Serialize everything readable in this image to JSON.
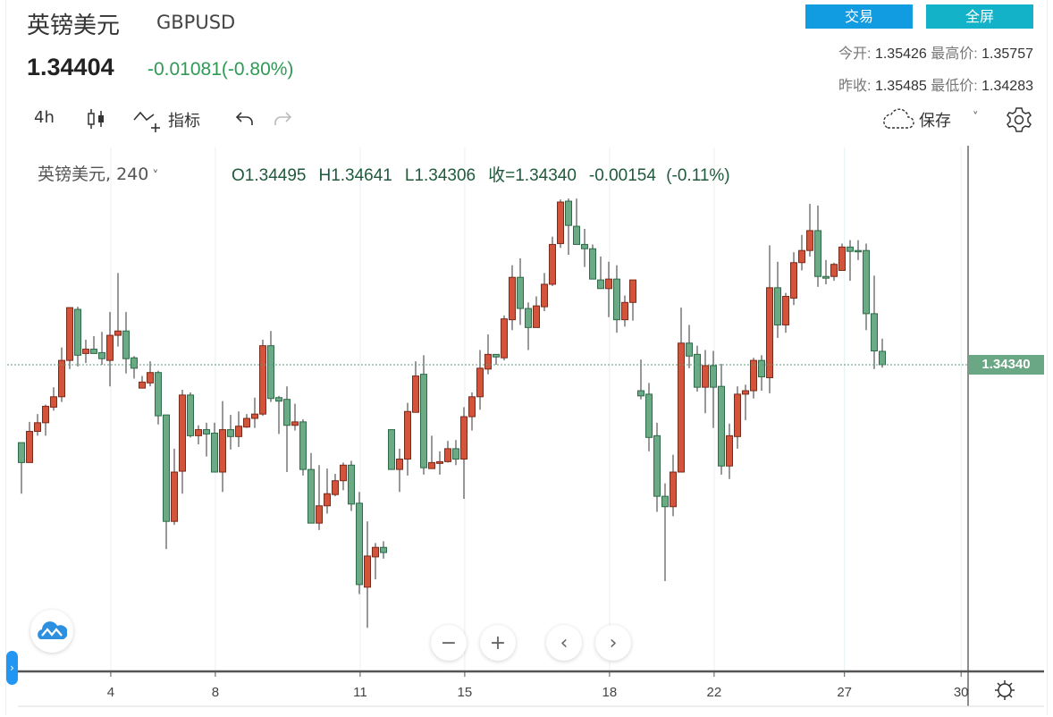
{
  "header": {
    "name": "英镑美元",
    "code": "GBPUSD",
    "price": "1.34404",
    "change": "-0.01081(-0.80%)",
    "trade_button": "交易",
    "fullscreen_button": "全屏",
    "stats": {
      "open_label": "今开:",
      "open": "1.35426",
      "high_label": "最高价:",
      "high": "1.35757",
      "prev_close_label": "昨收:",
      "prev_close": "1.35485",
      "low_label": "最低价:",
      "low": "1.34283"
    }
  },
  "toolbar": {
    "interval": "4h",
    "indicators": "指标",
    "save": "保存",
    "icons": [
      "candlestick-icon",
      "indicator-icon",
      "undo-icon",
      "redo-icon",
      "cloud-icon",
      "chevron-down-icon",
      "gear-icon"
    ]
  },
  "legend": {
    "symbol": "英镑美元, 240",
    "chevron": "˅",
    "open": "O1.34495",
    "high": "H1.34641",
    "low": "L1.34306",
    "close": "收=1.34340",
    "change": "-0.00154 (-0.11%)"
  },
  "controls": {
    "zoom_out": "−",
    "zoom_in": "+",
    "scroll_left": "‹",
    "scroll_right": "›",
    "side_tab": "›"
  },
  "colors": {
    "up": "#d4533b",
    "up_border": "#7c2a1b",
    "down": "#6aab85",
    "down_border": "#2e6a48",
    "last_price": "#6aa785",
    "trade": "#119be0",
    "fullscreen": "#14b2c8"
  },
  "chart_data": {
    "type": "candlestick",
    "title": "英镑美元, 240",
    "interval": "4h",
    "up_color_meaning": "red = rising, green = falling",
    "last_price": 1.3434,
    "last_price_label": "1.34340",
    "ylim": [
      1.30807,
      1.3685
    ],
    "x_ticks": [
      {
        "label": "4",
        "candle_index": 11.1
      },
      {
        "label": "8",
        "candle_index": 24.1
      },
      {
        "label": "11",
        "candle_index": 42.1
      },
      {
        "label": "15",
        "candle_index": 55.1
      },
      {
        "label": "18",
        "candle_index": 73.1
      },
      {
        "label": "22",
        "candle_index": 86.1
      },
      {
        "label": "27",
        "candle_index": 102.3
      },
      {
        "label": "30",
        "candle_index": 116.8
      }
    ],
    "ohlc": [
      [
        1.3344,
        1.3344,
        1.3285,
        1.3321
      ],
      [
        1.3321,
        1.3368,
        1.3321,
        1.3357
      ],
      [
        1.3357,
        1.3377,
        1.3352,
        1.3367
      ],
      [
        1.3367,
        1.3388,
        1.3352,
        1.3386
      ],
      [
        1.3385,
        1.3408,
        1.3381,
        1.3397
      ],
      [
        1.3397,
        1.3454,
        1.3391,
        1.3439
      ],
      [
        1.3439,
        1.35,
        1.3429,
        1.35
      ],
      [
        1.3498,
        1.3501,
        1.3432,
        1.3445
      ],
      [
        1.3447,
        1.3463,
        1.3436,
        1.3452
      ],
      [
        1.3452,
        1.3467,
        1.3447,
        1.3447
      ],
      [
        1.3448,
        1.3472,
        1.3434,
        1.3441
      ],
      [
        1.3439,
        1.3495,
        1.3409,
        1.3468
      ],
      [
        1.3468,
        1.354,
        1.3455,
        1.3473
      ],
      [
        1.3473,
        1.3495,
        1.3424,
        1.3441
      ],
      [
        1.3442,
        1.3444,
        1.3418,
        1.343
      ],
      [
        1.3407,
        1.3421,
        1.3407,
        1.3414
      ],
      [
        1.3413,
        1.3438,
        1.3409,
        1.3425
      ],
      [
        1.3425,
        1.3427,
        1.3365,
        1.3375
      ],
      [
        1.3376,
        1.3376,
        1.3221,
        1.3253
      ],
      [
        1.3253,
        1.3337,
        1.3249,
        1.331
      ],
      [
        1.3311,
        1.3405,
        1.3285,
        1.3399
      ],
      [
        1.3399,
        1.3402,
        1.335,
        1.3352
      ],
      [
        1.3352,
        1.3364,
        1.3342,
        1.3359
      ],
      [
        1.3359,
        1.3367,
        1.3328,
        1.3354
      ],
      [
        1.3355,
        1.3367,
        1.331,
        1.331
      ],
      [
        1.331,
        1.3392,
        1.3287,
        1.3359
      ],
      [
        1.3359,
        1.3376,
        1.3336,
        1.3351
      ],
      [
        1.3351,
        1.338,
        1.3339,
        1.3363
      ],
      [
        1.3362,
        1.3377,
        1.3361,
        1.3372
      ],
      [
        1.3372,
        1.3396,
        1.3361,
        1.3377
      ],
      [
        1.3377,
        1.3463,
        1.3375,
        1.3456
      ],
      [
        1.3456,
        1.3473,
        1.3391,
        1.3395
      ],
      [
        1.3396,
        1.3398,
        1.3354,
        1.3392
      ],
      [
        1.3394,
        1.3409,
        1.331,
        1.3364
      ],
      [
        1.3364,
        1.3389,
        1.3358,
        1.3368
      ],
      [
        1.3368,
        1.3371,
        1.3306,
        1.3313
      ],
      [
        1.3313,
        1.3332,
        1.3251,
        1.3251
      ],
      [
        1.3251,
        1.3318,
        1.3243,
        1.3271
      ],
      [
        1.3271,
        1.3314,
        1.3262,
        1.3285
      ],
      [
        1.3284,
        1.3308,
        1.3282,
        1.33
      ],
      [
        1.33,
        1.3321,
        1.3289,
        1.3318
      ],
      [
        1.3318,
        1.3323,
        1.3265,
        1.3273
      ],
      [
        1.3274,
        1.3287,
        1.3169,
        1.318
      ],
      [
        1.3177,
        1.3253,
        1.313,
        1.3213
      ],
      [
        1.3212,
        1.3228,
        1.3186,
        1.3223
      ],
      [
        1.3223,
        1.323,
        1.321,
        1.3217
      ],
      [
        1.3359,
        1.3359,
        1.3313,
        1.3313
      ],
      [
        1.3313,
        1.3337,
        1.3287,
        1.3325
      ],
      [
        1.3325,
        1.339,
        1.3306,
        1.338
      ],
      [
        1.3379,
        1.3438,
        1.3379,
        1.3421
      ],
      [
        1.3423,
        1.3445,
        1.3307,
        1.3315
      ],
      [
        1.3314,
        1.3352,
        1.3314,
        1.3321
      ],
      [
        1.332,
        1.3334,
        1.3307,
        1.3322
      ],
      [
        1.3322,
        1.3346,
        1.3321,
        1.3337
      ],
      [
        1.3337,
        1.3347,
        1.3318,
        1.3325
      ],
      [
        1.3325,
        1.3385,
        1.3279,
        1.3374
      ],
      [
        1.3374,
        1.3402,
        1.3358,
        1.3397
      ],
      [
        1.3397,
        1.3451,
        1.3382,
        1.343
      ],
      [
        1.3429,
        1.3469,
        1.3423,
        1.3446
      ],
      [
        1.3446,
        1.3446,
        1.3434,
        1.3443
      ],
      [
        1.3442,
        1.3491,
        1.3439,
        1.3487
      ],
      [
        1.3486,
        1.3549,
        1.3474,
        1.3535
      ],
      [
        1.3535,
        1.3557,
        1.348,
        1.3499
      ],
      [
        1.3499,
        1.3506,
        1.3451,
        1.3477
      ],
      [
        1.3477,
        1.3513,
        1.3477,
        1.3502
      ],
      [
        1.3501,
        1.354,
        1.3496,
        1.3527
      ],
      [
        1.3527,
        1.3582,
        1.3525,
        1.3573
      ],
      [
        1.3574,
        1.3625,
        1.3569,
        1.3622
      ],
      [
        1.3623,
        1.3626,
        1.3561,
        1.3595
      ],
      [
        1.3594,
        1.3626,
        1.3573,
        1.3573
      ],
      [
        1.3573,
        1.3591,
        1.3547,
        1.3568
      ],
      [
        1.3568,
        1.3573,
        1.3533,
        1.3533
      ],
      [
        1.3532,
        1.3559,
        1.3522,
        1.3522
      ],
      [
        1.3522,
        1.3553,
        1.3489,
        1.3533
      ],
      [
        1.3533,
        1.3549,
        1.3471,
        1.3486
      ],
      [
        1.3486,
        1.3514,
        1.3478,
        1.3506
      ],
      [
        1.3506,
        1.3532,
        1.3485,
        1.3532
      ],
      [
        1.3404,
        1.344,
        1.3394,
        1.3398
      ],
      [
        1.34,
        1.3413,
        1.3334,
        1.335
      ],
      [
        1.3352,
        1.3367,
        1.3264,
        1.3282
      ],
      [
        1.3282,
        1.3297,
        1.3184,
        1.327
      ],
      [
        1.327,
        1.333,
        1.3259,
        1.331
      ],
      [
        1.331,
        1.35,
        1.331,
        1.3459
      ],
      [
        1.3459,
        1.348,
        1.343,
        1.3444
      ],
      [
        1.3446,
        1.3456,
        1.3403,
        1.3408
      ],
      [
        1.3408,
        1.3451,
        1.3378,
        1.3433
      ],
      [
        1.3433,
        1.345,
        1.3361,
        1.3408
      ],
      [
        1.3409,
        1.3435,
        1.3307,
        1.3317
      ],
      [
        1.3317,
        1.3366,
        1.3302,
        1.3352
      ],
      [
        1.3351,
        1.3409,
        1.3337,
        1.34
      ],
      [
        1.34,
        1.3411,
        1.337,
        1.3404
      ],
      [
        1.3404,
        1.3442,
        1.3395,
        1.3439
      ],
      [
        1.3439,
        1.3445,
        1.3404,
        1.342
      ],
      [
        1.3419,
        1.3572,
        1.3401,
        1.3523
      ],
      [
        1.3523,
        1.3553,
        1.3465,
        1.348
      ],
      [
        1.348,
        1.3517,
        1.3471,
        1.3513
      ],
      [
        1.3511,
        1.3564,
        1.3503,
        1.3552
      ],
      [
        1.3552,
        1.3584,
        1.3543,
        1.3566
      ],
      [
        1.3566,
        1.362,
        1.3559,
        1.3589
      ],
      [
        1.3589,
        1.3618,
        1.3524,
        1.3536
      ],
      [
        1.3536,
        1.3555,
        1.3527,
        1.3534
      ],
      [
        1.3536,
        1.3552,
        1.3531,
        1.355
      ],
      [
        1.3543,
        1.3574,
        1.3543,
        1.357
      ],
      [
        1.357,
        1.3578,
        1.3531,
        1.3565
      ],
      [
        1.3566,
        1.3578,
        1.3555,
        1.3565
      ],
      [
        1.3566,
        1.3574,
        1.3474,
        1.3493
      ],
      [
        1.3493,
        1.3537,
        1.3429,
        1.345
      ],
      [
        1.34495,
        1.34641,
        1.34306,
        1.3434
      ]
    ]
  }
}
